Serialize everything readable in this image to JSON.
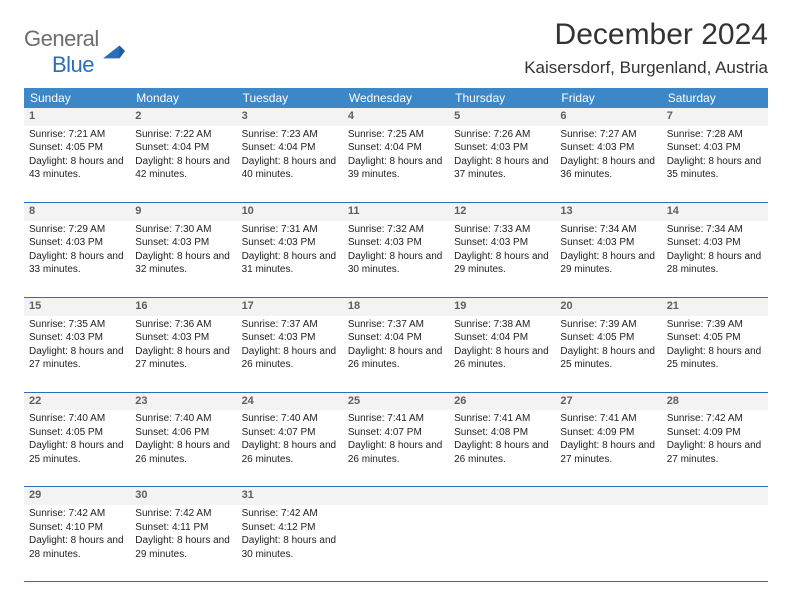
{
  "logo": {
    "text1": "General",
    "text2": "Blue"
  },
  "title": "December 2024",
  "location": "Kaisersdorf, Burgenland, Austria",
  "colors": {
    "header_bg": "#3b87c8",
    "header_text": "#ffffff",
    "rule": "#2a6fb5",
    "daynum": "#5f5f5f",
    "body_text": "#222222",
    "shade": "#f3f3f3"
  },
  "columns": [
    "Sunday",
    "Monday",
    "Tuesday",
    "Wednesday",
    "Thursday",
    "Friday",
    "Saturday"
  ],
  "weeks": [
    [
      {
        "n": "1",
        "sr": "7:21 AM",
        "ss": "4:05 PM",
        "dl": "8 hours and 43 minutes."
      },
      {
        "n": "2",
        "sr": "7:22 AM",
        "ss": "4:04 PM",
        "dl": "8 hours and 42 minutes."
      },
      {
        "n": "3",
        "sr": "7:23 AM",
        "ss": "4:04 PM",
        "dl": "8 hours and 40 minutes."
      },
      {
        "n": "4",
        "sr": "7:25 AM",
        "ss": "4:04 PM",
        "dl": "8 hours and 39 minutes."
      },
      {
        "n": "5",
        "sr": "7:26 AM",
        "ss": "4:03 PM",
        "dl": "8 hours and 37 minutes."
      },
      {
        "n": "6",
        "sr": "7:27 AM",
        "ss": "4:03 PM",
        "dl": "8 hours and 36 minutes."
      },
      {
        "n": "7",
        "sr": "7:28 AM",
        "ss": "4:03 PM",
        "dl": "8 hours and 35 minutes."
      }
    ],
    [
      {
        "n": "8",
        "sr": "7:29 AM",
        "ss": "4:03 PM",
        "dl": "8 hours and 33 minutes."
      },
      {
        "n": "9",
        "sr": "7:30 AM",
        "ss": "4:03 PM",
        "dl": "8 hours and 32 minutes."
      },
      {
        "n": "10",
        "sr": "7:31 AM",
        "ss": "4:03 PM",
        "dl": "8 hours and 31 minutes."
      },
      {
        "n": "11",
        "sr": "7:32 AM",
        "ss": "4:03 PM",
        "dl": "8 hours and 30 minutes."
      },
      {
        "n": "12",
        "sr": "7:33 AM",
        "ss": "4:03 PM",
        "dl": "8 hours and 29 minutes."
      },
      {
        "n": "13",
        "sr": "7:34 AM",
        "ss": "4:03 PM",
        "dl": "8 hours and 29 minutes."
      },
      {
        "n": "14",
        "sr": "7:34 AM",
        "ss": "4:03 PM",
        "dl": "8 hours and 28 minutes."
      }
    ],
    [
      {
        "n": "15",
        "sr": "7:35 AM",
        "ss": "4:03 PM",
        "dl": "8 hours and 27 minutes."
      },
      {
        "n": "16",
        "sr": "7:36 AM",
        "ss": "4:03 PM",
        "dl": "8 hours and 27 minutes."
      },
      {
        "n": "17",
        "sr": "7:37 AM",
        "ss": "4:03 PM",
        "dl": "8 hours and 26 minutes."
      },
      {
        "n": "18",
        "sr": "7:37 AM",
        "ss": "4:04 PM",
        "dl": "8 hours and 26 minutes."
      },
      {
        "n": "19",
        "sr": "7:38 AM",
        "ss": "4:04 PM",
        "dl": "8 hours and 26 minutes."
      },
      {
        "n": "20",
        "sr": "7:39 AM",
        "ss": "4:05 PM",
        "dl": "8 hours and 25 minutes."
      },
      {
        "n": "21",
        "sr": "7:39 AM",
        "ss": "4:05 PM",
        "dl": "8 hours and 25 minutes."
      }
    ],
    [
      {
        "n": "22",
        "sr": "7:40 AM",
        "ss": "4:05 PM",
        "dl": "8 hours and 25 minutes."
      },
      {
        "n": "23",
        "sr": "7:40 AM",
        "ss": "4:06 PM",
        "dl": "8 hours and 26 minutes."
      },
      {
        "n": "24",
        "sr": "7:40 AM",
        "ss": "4:07 PM",
        "dl": "8 hours and 26 minutes."
      },
      {
        "n": "25",
        "sr": "7:41 AM",
        "ss": "4:07 PM",
        "dl": "8 hours and 26 minutes."
      },
      {
        "n": "26",
        "sr": "7:41 AM",
        "ss": "4:08 PM",
        "dl": "8 hours and 26 minutes."
      },
      {
        "n": "27",
        "sr": "7:41 AM",
        "ss": "4:09 PM",
        "dl": "8 hours and 27 minutes."
      },
      {
        "n": "28",
        "sr": "7:42 AM",
        "ss": "4:09 PM",
        "dl": "8 hours and 27 minutes."
      }
    ],
    [
      {
        "n": "29",
        "sr": "7:42 AM",
        "ss": "4:10 PM",
        "dl": "8 hours and 28 minutes."
      },
      {
        "n": "30",
        "sr": "7:42 AM",
        "ss": "4:11 PM",
        "dl": "8 hours and 29 minutes."
      },
      {
        "n": "31",
        "sr": "7:42 AM",
        "ss": "4:12 PM",
        "dl": "8 hours and 30 minutes."
      },
      null,
      null,
      null,
      null
    ]
  ],
  "labels": {
    "sunrise": "Sunrise:",
    "sunset": "Sunset:",
    "daylight": "Daylight:"
  }
}
